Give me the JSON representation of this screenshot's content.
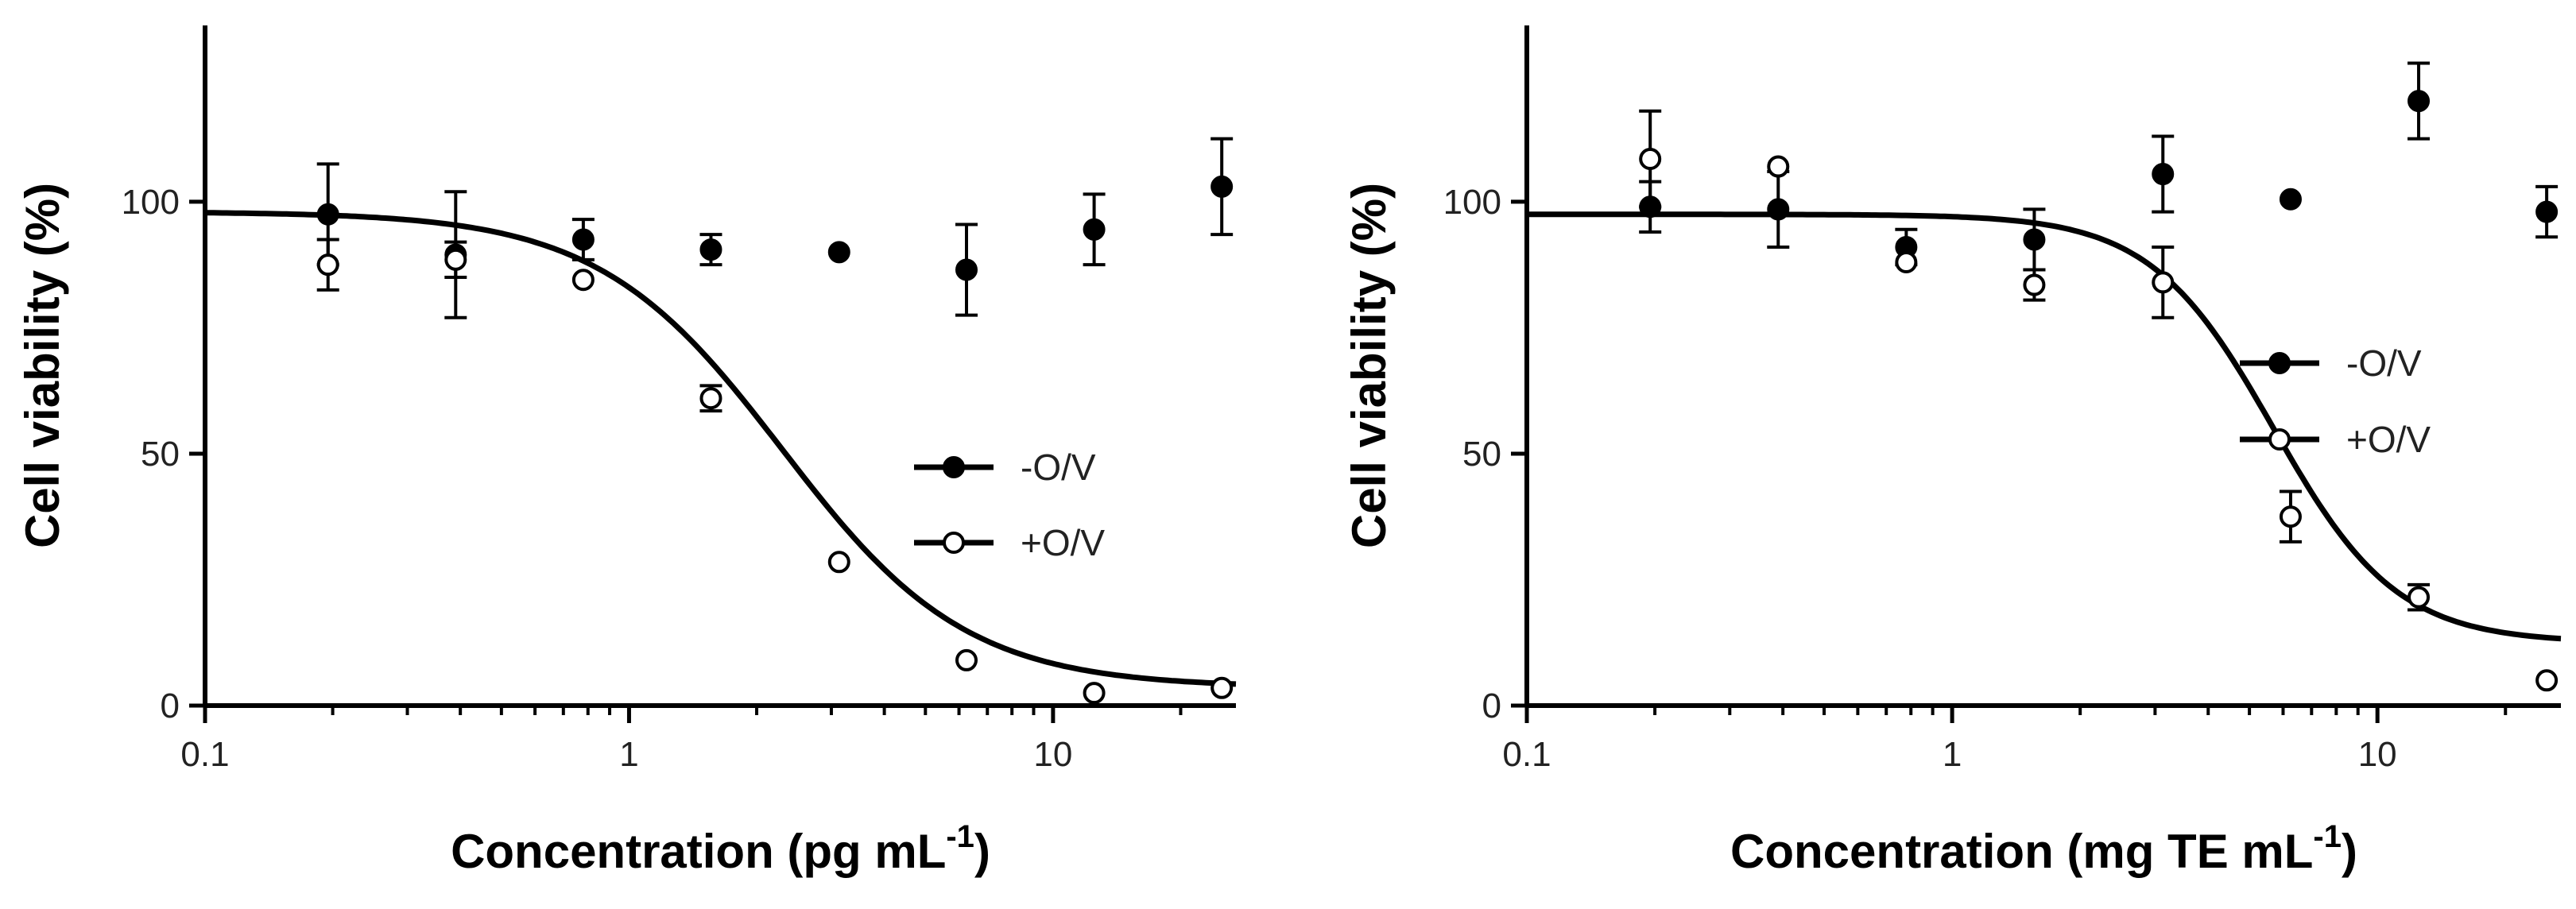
{
  "chart_data": [
    {
      "type": "scatter",
      "title": "",
      "xlabel": "Concentration (pg mL",
      "xlabel_sup": "-1",
      "xlabel_close": ")",
      "ylabel": "Cell viability (%)",
      "xscale": "log",
      "xlim": [
        0.1,
        27
      ],
      "ylim": [
        0,
        135
      ],
      "xticks": [
        0.1,
        1,
        10
      ],
      "xtick_labels": [
        "0.1",
        "1",
        "10"
      ],
      "yticks": [
        0,
        50,
        100
      ],
      "ytick_labels": [
        "0",
        "50",
        "100"
      ],
      "legend_placement": "center-right",
      "series": [
        {
          "name": "-O/V",
          "marker": "filled-circle",
          "x": [
            0.195,
            0.39,
            0.78,
            1.56,
            3.13,
            6.25,
            12.5,
            25
          ],
          "y": [
            97.5,
            89.5,
            92.5,
            90.5,
            90,
            86.5,
            94.5,
            103
          ],
          "error": [
            10,
            12.5,
            4,
            3,
            0,
            9,
            7,
            9.5
          ]
        },
        {
          "name": "+O/V",
          "marker": "open-circle",
          "x": [
            0.195,
            0.39,
            0.78,
            1.56,
            3.13,
            6.25,
            12.5,
            25
          ],
          "y": [
            87.5,
            88.5,
            84.5,
            61,
            28.5,
            9,
            2.5,
            3.5
          ],
          "error": [
            5,
            3.5,
            0,
            2.5,
            0,
            0,
            0,
            0
          ]
        }
      ],
      "fit_curve": {
        "series": "+O/V",
        "top": 98,
        "bottom": 3.6,
        "ic50": 2.3,
        "hill": 2.0
      }
    },
    {
      "type": "scatter",
      "title": "",
      "xlabel": "Concentration (mg TE mL",
      "xlabel_sup": "-1",
      "xlabel_close": ")",
      "ylabel": "Cell viability (%)",
      "xscale": "log",
      "xlim": [
        0.1,
        27
      ],
      "ylim": [
        0,
        135
      ],
      "xticks": [
        0.1,
        1,
        10
      ],
      "xtick_labels": [
        "0.1",
        "1",
        "10"
      ],
      "yticks": [
        0,
        50,
        100
      ],
      "ytick_labels": [
        "0",
        "50",
        "100"
      ],
      "legend_placement": "upper-right",
      "series": [
        {
          "name": "-O/V",
          "marker": "filled-circle",
          "x": [
            0.195,
            0.39,
            0.78,
            1.56,
            3.13,
            6.25,
            12.5,
            25
          ],
          "y": [
            99,
            98.5,
            91,
            92.5,
            105.5,
            100.5,
            120,
            98
          ],
          "error": [
            5,
            7.5,
            3.5,
            6,
            7.5,
            0,
            7.5,
            5
          ]
        },
        {
          "name": "+O/V",
          "marker": "open-circle",
          "x": [
            0.195,
            0.39,
            0.78,
            1.56,
            3.13,
            6.25,
            12.5,
            25
          ],
          "y": [
            108.5,
            107,
            88,
            83.5,
            84,
            37.5,
            21.5,
            5
          ],
          "error": [
            9.5,
            0,
            0,
            3,
            7,
            5,
            2.5,
            0
          ]
        }
      ],
      "fit_curve": {
        "series": "+O/V",
        "top": 97.5,
        "bottom": 12.5,
        "ic50": 5.7,
        "hill": 3.0
      }
    }
  ]
}
